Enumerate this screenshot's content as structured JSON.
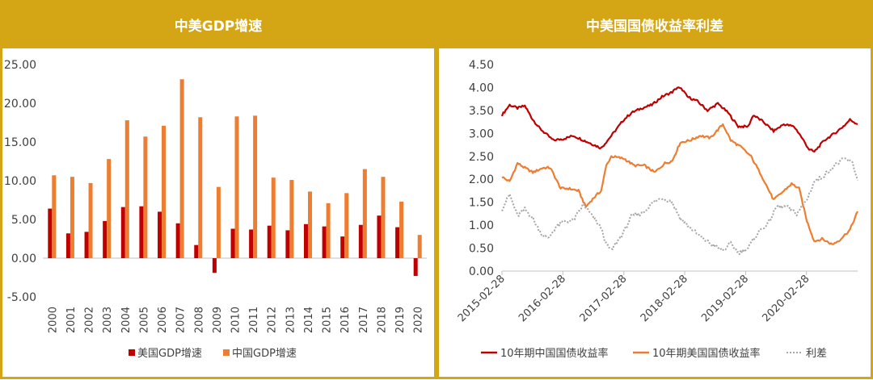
{
  "colors": {
    "frame": "#d4a514",
    "us_series": "#c00000",
    "china_series": "#ed7d31",
    "spread_series": "#a6a6a6",
    "axis_text": "#404040"
  },
  "left_panel": {
    "title": "中美GDP增速"
  },
  "right_panel": {
    "title": "中美国国债收益率利差"
  },
  "chart_data": [
    {
      "type": "bar",
      "title": "中美GDP增速",
      "categories": [
        "2000",
        "2001",
        "2002",
        "2003",
        "2004",
        "2005",
        "2006",
        "2007",
        "2008",
        "2009",
        "2010",
        "2011",
        "2012",
        "2013",
        "2014",
        "2015",
        "2016",
        "2017",
        "2018",
        "2019",
        "2020"
      ],
      "series": [
        {
          "name": "美国GDP增速",
          "values": [
            6.4,
            3.2,
            3.4,
            4.8,
            6.6,
            6.7,
            6.0,
            4.5,
            1.7,
            -1.9,
            3.8,
            3.7,
            4.2,
            3.6,
            4.4,
            4.1,
            2.8,
            4.3,
            5.5,
            4.0,
            -2.3
          ]
        },
        {
          "name": "中国GDP增速",
          "values": [
            10.7,
            10.5,
            9.7,
            12.8,
            17.8,
            15.7,
            17.1,
            23.1,
            18.2,
            9.2,
            18.3,
            18.4,
            10.4,
            10.1,
            8.6,
            7.1,
            8.4,
            11.5,
            10.5,
            7.3,
            3.0
          ]
        }
      ],
      "ylim": [
        -5,
        25
      ],
      "yticks": [
        "-5.00",
        "0.00",
        "5.00",
        "10.00",
        "15.00",
        "20.00",
        "25.00"
      ],
      "ytick_values": [
        -5,
        0,
        5,
        10,
        15,
        20,
        25
      ],
      "legend": "bottom",
      "grid": false
    },
    {
      "type": "line",
      "title": "中美国国债收益率利差",
      "x_start": "2015-02-28",
      "x_end": "2020-12-31",
      "x_tick_labels": [
        "2015-02-28",
        "2016-02-28",
        "2017-02-28",
        "2018-02-28",
        "2019-02-28",
        "2020-02-28"
      ],
      "ylim": [
        0,
        4.5
      ],
      "yticks": [
        "0.00",
        "0.50",
        "1.00",
        "1.50",
        "2.00",
        "2.50",
        "3.00",
        "3.50",
        "4.00",
        "4.50"
      ],
      "ytick_values": [
        0,
        0.5,
        1,
        1.5,
        2,
        2.5,
        3,
        3.5,
        4,
        4.5
      ],
      "series": [
        {
          "name": "10年期中国国债收益率",
          "style": "solid",
          "points": [
            [
              "2015-02-28",
              3.4
            ],
            [
              "2015-04-15",
              3.62
            ],
            [
              "2015-06-01",
              3.55
            ],
            [
              "2015-07-15",
              3.6
            ],
            [
              "2015-09-01",
              3.3
            ],
            [
              "2015-10-15",
              3.1
            ],
            [
              "2015-12-01",
              2.95
            ],
            [
              "2016-01-01",
              2.85
            ],
            [
              "2016-03-01",
              2.88
            ],
            [
              "2016-05-01",
              2.95
            ],
            [
              "2016-07-01",
              2.85
            ],
            [
              "2016-09-01",
              2.75
            ],
            [
              "2016-10-15",
              2.68
            ],
            [
              "2016-12-15",
              2.95
            ],
            [
              "2017-02-28",
              3.3
            ],
            [
              "2017-04-15",
              3.45
            ],
            [
              "2017-06-15",
              3.55
            ],
            [
              "2017-08-15",
              3.62
            ],
            [
              "2017-10-15",
              3.8
            ],
            [
              "2017-12-15",
              3.9
            ],
            [
              "2018-01-15",
              4.0
            ],
            [
              "2018-02-15",
              3.95
            ],
            [
              "2018-03-15",
              3.8
            ],
            [
              "2018-05-15",
              3.7
            ],
            [
              "2018-07-15",
              3.5
            ],
            [
              "2018-09-15",
              3.65
            ],
            [
              "2018-11-15",
              3.45
            ],
            [
              "2019-01-15",
              3.15
            ],
            [
              "2019-03-15",
              3.15
            ],
            [
              "2019-04-15",
              3.4
            ],
            [
              "2019-06-15",
              3.25
            ],
            [
              "2019-08-15",
              3.05
            ],
            [
              "2019-10-15",
              3.2
            ],
            [
              "2019-12-15",
              3.15
            ],
            [
              "2020-01-15",
              3.0
            ],
            [
              "2020-03-15",
              2.65
            ],
            [
              "2020-04-15",
              2.6
            ],
            [
              "2020-06-15",
              2.85
            ],
            [
              "2020-08-15",
              3.0
            ],
            [
              "2020-10-15",
              3.18
            ],
            [
              "2020-11-15",
              3.3
            ],
            [
              "2020-12-31",
              3.2
            ]
          ]
        },
        {
          "name": "10年期美国国债收益率",
          "style": "solid",
          "points": [
            [
              "2015-02-28",
              2.05
            ],
            [
              "2015-04-15",
              1.95
            ],
            [
              "2015-06-01",
              2.35
            ],
            [
              "2015-07-15",
              2.25
            ],
            [
              "2015-09-01",
              2.15
            ],
            [
              "2015-11-01",
              2.25
            ],
            [
              "2015-12-15",
              2.25
            ],
            [
              "2016-02-15",
              1.8
            ],
            [
              "2016-04-01",
              1.8
            ],
            [
              "2016-06-01",
              1.75
            ],
            [
              "2016-07-15",
              1.4
            ],
            [
              "2016-09-01",
              1.6
            ],
            [
              "2016-10-15",
              1.75
            ],
            [
              "2016-11-15",
              2.3
            ],
            [
              "2016-12-15",
              2.5
            ],
            [
              "2017-03-01",
              2.45
            ],
            [
              "2017-05-01",
              2.3
            ],
            [
              "2017-07-01",
              2.3
            ],
            [
              "2017-09-01",
              2.15
            ],
            [
              "2017-11-01",
              2.35
            ],
            [
              "2017-12-15",
              2.4
            ],
            [
              "2018-02-01",
              2.8
            ],
            [
              "2018-04-01",
              2.85
            ],
            [
              "2018-06-01",
              2.95
            ],
            [
              "2018-08-01",
              2.9
            ],
            [
              "2018-10-15",
              3.2
            ],
            [
              "2018-12-01",
              2.85
            ],
            [
              "2019-02-01",
              2.7
            ],
            [
              "2019-04-01",
              2.5
            ],
            [
              "2019-06-01",
              2.1
            ],
            [
              "2019-08-15",
              1.55
            ],
            [
              "2019-10-01",
              1.7
            ],
            [
              "2019-12-01",
              1.9
            ],
            [
              "2020-01-15",
              1.8
            ],
            [
              "2020-03-01",
              1.1
            ],
            [
              "2020-04-15",
              0.65
            ],
            [
              "2020-06-01",
              0.7
            ],
            [
              "2020-08-01",
              0.58
            ],
            [
              "2020-09-15",
              0.68
            ],
            [
              "2020-11-15",
              0.9
            ],
            [
              "2020-12-31",
              1.3
            ]
          ]
        },
        {
          "name": "利差",
          "style": "dotted",
          "points": [
            [
              "2015-02-28",
              1.35
            ],
            [
              "2015-04-15",
              1.67
            ],
            [
              "2015-06-01",
              1.2
            ],
            [
              "2015-07-15",
              1.35
            ],
            [
              "2015-09-01",
              1.15
            ],
            [
              "2015-10-15",
              0.85
            ],
            [
              "2015-12-01",
              0.7
            ],
            [
              "2016-01-15",
              0.95
            ],
            [
              "2016-03-01",
              1.08
            ],
            [
              "2016-05-01",
              1.1
            ],
            [
              "2016-07-01",
              1.45
            ],
            [
              "2016-09-01",
              1.15
            ],
            [
              "2016-10-15",
              0.93
            ],
            [
              "2016-11-15",
              0.58
            ],
            [
              "2016-12-15",
              0.45
            ],
            [
              "2017-02-28",
              0.85
            ],
            [
              "2017-04-15",
              1.2
            ],
            [
              "2017-06-15",
              1.25
            ],
            [
              "2017-08-15",
              1.47
            ],
            [
              "2017-10-15",
              1.6
            ],
            [
              "2017-12-15",
              1.5
            ],
            [
              "2018-02-01",
              1.15
            ],
            [
              "2018-04-01",
              0.95
            ],
            [
              "2018-06-01",
              0.75
            ],
            [
              "2018-08-01",
              0.6
            ],
            [
              "2018-10-15",
              0.45
            ],
            [
              "2018-12-01",
              0.6
            ],
            [
              "2019-01-15",
              0.4
            ],
            [
              "2019-03-15",
              0.5
            ],
            [
              "2019-05-15",
              0.85
            ],
            [
              "2019-07-15",
              1.05
            ],
            [
              "2019-09-01",
              1.4
            ],
            [
              "2019-11-01",
              1.4
            ],
            [
              "2020-01-01",
              1.25
            ],
            [
              "2020-03-01",
              1.55
            ],
            [
              "2020-04-15",
              1.95
            ],
            [
              "2020-06-01",
              2.05
            ],
            [
              "2020-08-15",
              2.3
            ],
            [
              "2020-10-15",
              2.45
            ],
            [
              "2020-12-01",
              2.35
            ],
            [
              "2020-12-31",
              1.98
            ]
          ]
        }
      ],
      "legend": "bottom",
      "grid": false
    }
  ]
}
